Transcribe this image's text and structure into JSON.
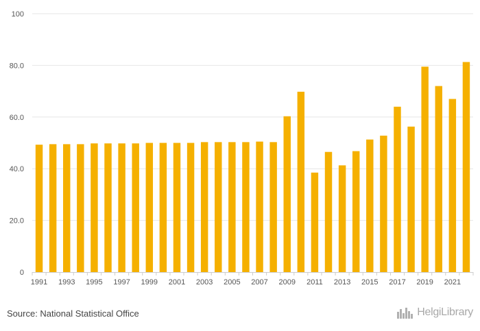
{
  "chart_data": {
    "type": "bar",
    "categories": [
      "1991",
      "1992",
      "1993",
      "1994",
      "1995",
      "1996",
      "1997",
      "1998",
      "1999",
      "2000",
      "2001",
      "2002",
      "2003",
      "2004",
      "2005",
      "2006",
      "2007",
      "2008",
      "2009",
      "2010",
      "2011",
      "2012",
      "2013",
      "2014",
      "2015",
      "2016",
      "2017",
      "2018",
      "2019",
      "2020",
      "2021",
      "2022"
    ],
    "values": [
      49.3,
      49.5,
      49.5,
      49.5,
      49.8,
      49.8,
      49.8,
      49.8,
      50.0,
      50.0,
      50.0,
      50.0,
      50.3,
      50.3,
      50.3,
      50.3,
      50.5,
      50.3,
      60.3,
      69.8,
      38.5,
      46.5,
      41.3,
      46.8,
      51.3,
      52.8,
      64.0,
      56.3,
      79.5,
      72.0,
      67.0,
      81.3
    ],
    "x_tick_labels": [
      "1991",
      "1993",
      "1995",
      "1997",
      "1999",
      "2001",
      "2003",
      "2005",
      "2007",
      "2009",
      "2011",
      "2013",
      "2015",
      "2017",
      "2019",
      "2021"
    ],
    "y_ticks": [
      0,
      20,
      40,
      60,
      80,
      100
    ],
    "y_tick_labels": [
      "0",
      "20.0",
      "40.0",
      "60.0",
      "80.0",
      "100"
    ],
    "ylim": [
      0,
      100
    ],
    "grid": true,
    "legend": "none",
    "bar_color": "#f5b000",
    "title": "",
    "xlabel": "",
    "ylabel": ""
  },
  "footer": {
    "source": "Source: National Statistical Office",
    "logo_text": "HelgiLibrary"
  },
  "colors": {
    "bar": "#f5b000",
    "grid": "#e6e6e6",
    "axis": "#cccccc",
    "text": "#555555"
  },
  "icons": {
    "logo_mark": "city-skyline-icon"
  }
}
